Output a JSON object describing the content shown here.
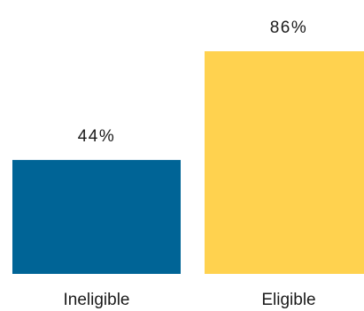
{
  "chart_data": {
    "type": "bar",
    "categories": [
      "Ineligible",
      "Eligible"
    ],
    "values": [
      44,
      86
    ],
    "value_labels": [
      "44%",
      "86%"
    ],
    "colors": [
      "#006496",
      "#FFD24F"
    ],
    "ylim": [
      0,
      100
    ],
    "grid": false,
    "legend": "none"
  }
}
